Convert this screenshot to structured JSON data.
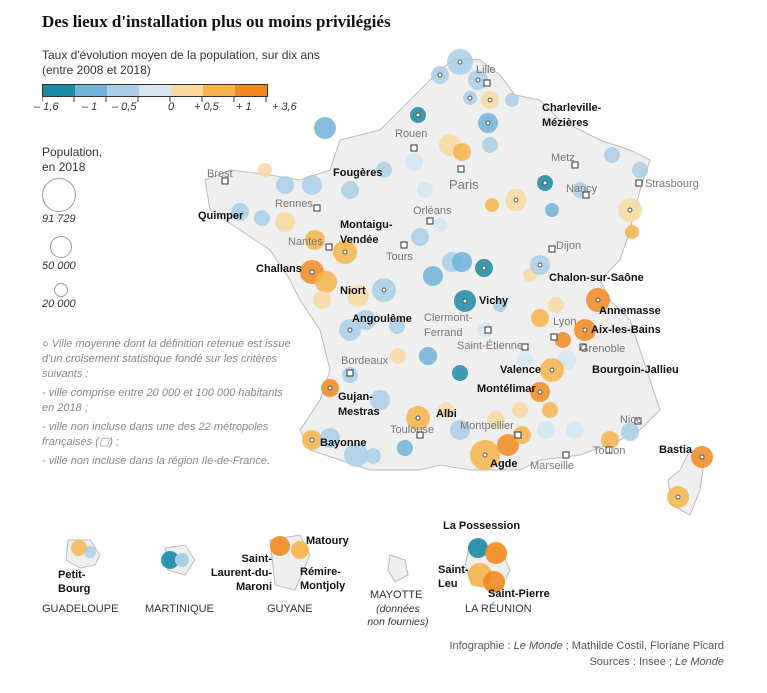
{
  "title": "Des lieux d'installation plus ou moins privilégiés",
  "subtitle_line1": "Taux d'évolution moyen de la population, sur dix ans",
  "subtitle_line2": "(entre 2008 et 2018)",
  "scale": {
    "colors": [
      "#1b8aa6",
      "#6fb3d6",
      "#a8cfe6",
      "#d3e6f2",
      "#f9d9a0",
      "#f5b44a",
      "#f08a1f"
    ],
    "labels": [
      "– 1,6",
      "– 1",
      "– 0,5",
      "0",
      "+ 0,5",
      "+ 1",
      "+ 3,6"
    ]
  },
  "population": {
    "title_line1": "Population,",
    "title_line2": "en 2018",
    "values": [
      "91 729",
      "50 000",
      "20 000"
    ]
  },
  "note": {
    "intro": "Ville moyenne dont la définition retenue est issue d'un croisement statistique fondé sur les critères suivants :",
    "criteria": [
      "- ville comprise entre 20 000 et 100 000 habitants en 2018 ;",
      "- ville non incluse dans une des 22 métropoles françaises (▢) ;",
      "- ville non incluse dans la région Ile-de-France."
    ]
  },
  "metropoles": [
    "Lille",
    "Rouen",
    "Metz",
    "Paris",
    "Brest",
    "Rennes",
    "Nancy",
    "Strasbourg",
    "Orléans",
    "Nantes",
    "Tours",
    "Dijon",
    "Clermont-Ferrand",
    "Lyon",
    "Saint-Étienne",
    "Grenoble",
    "Bordeaux",
    "Toulouse",
    "Montpellier",
    "Marseille",
    "Nice",
    "Toulon"
  ],
  "cities": [
    "Charleville-Mézières",
    "Fougères",
    "Quimper",
    "Montaigu-Vendée",
    "Challans",
    "Niort",
    "Angoulême",
    "Chalon-sur-Saône",
    "Vichy",
    "Annemasse",
    "Aix-les-Bains",
    "Bourgoin-Jallieu",
    "Valence",
    "Montélimar",
    "Gujan-Mestras",
    "Albi",
    "Bayonne",
    "Agde",
    "Bastia"
  ],
  "overseas": {
    "guadeloupe": {
      "name": "GUADELOUPE",
      "city": "Petit-Bourg"
    },
    "martinique": {
      "name": "MARTINIQUE"
    },
    "guyane": {
      "name": "GUYANE",
      "cities": [
        "Saint-Laurent-du-Maroni",
        "Matoury",
        "Rémire-Montjoly"
      ]
    },
    "mayotte": {
      "name": "MAYOTTE",
      "note": "(données non fournies)"
    },
    "reunion": {
      "name": "LA RÉUNION",
      "cities": [
        "La Possession",
        "Saint-Leu",
        "Saint-Pierre"
      ]
    }
  },
  "credit": {
    "line1_prefix": "Infographie : ",
    "line1_source": "Le Monde",
    "line1_suffix": " ; Mathilde Costil, Floriane Picard",
    "line2_prefix": "Sources : Insee ; ",
    "line2_source": "Le Monde"
  }
}
